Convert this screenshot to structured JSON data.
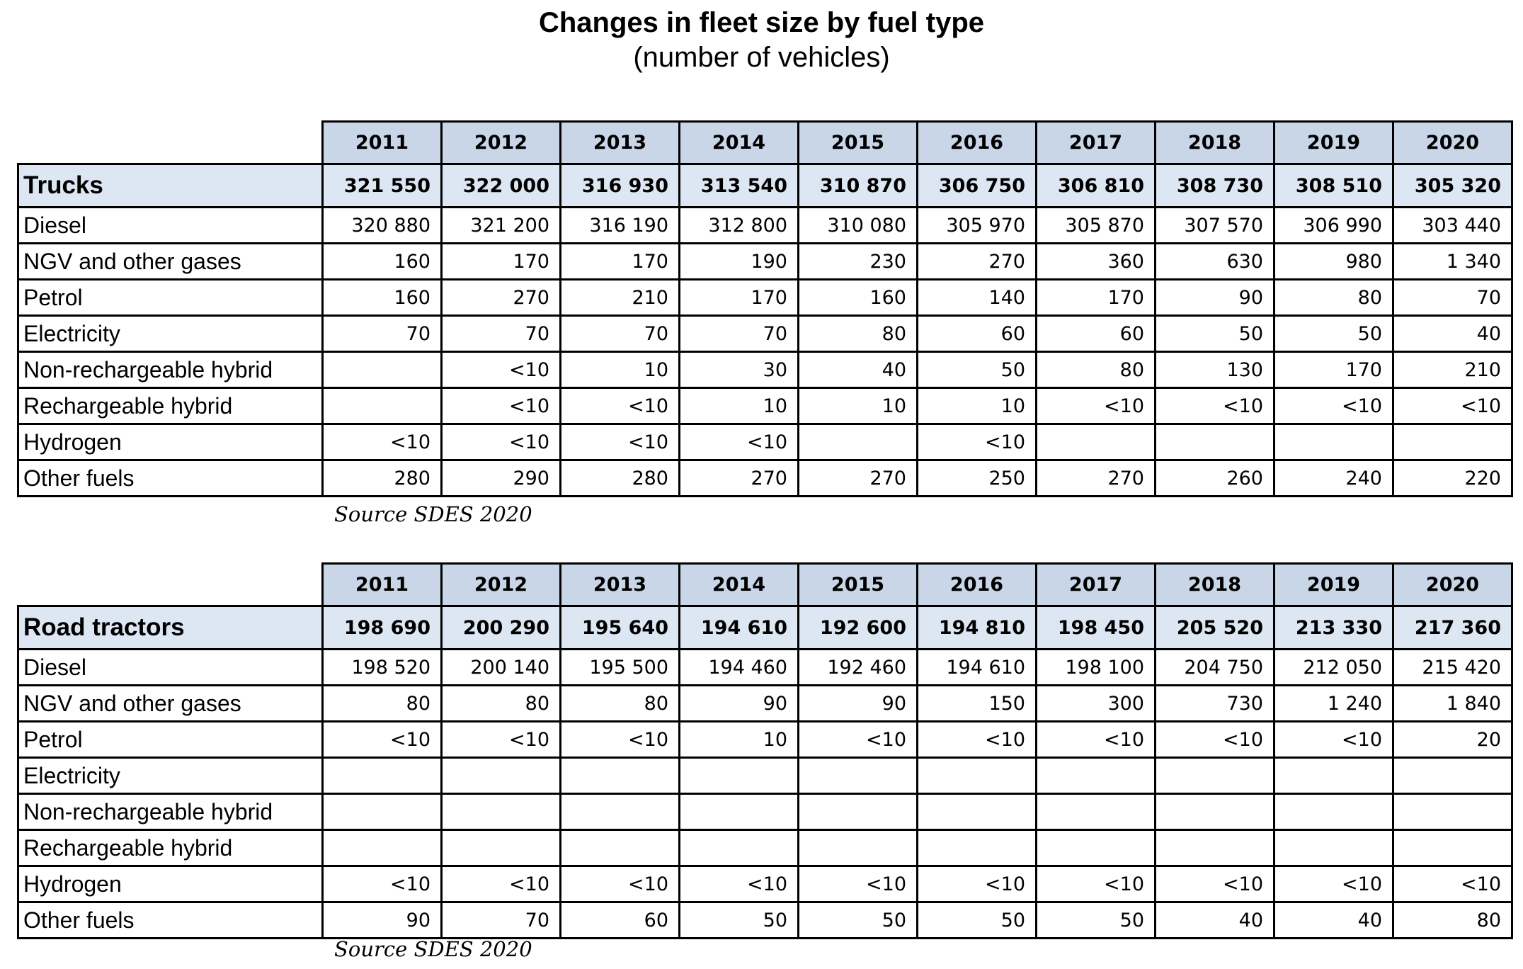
{
  "title": "Changes in fleet size by fuel type",
  "subtitle": "(number of vehicles)",
  "years": [
    "2011",
    "2012",
    "2013",
    "2014",
    "2015",
    "2016",
    "2017",
    "2018",
    "2019",
    "2020"
  ],
  "tables": [
    {
      "total_label": "Trucks",
      "totals": [
        "321 550",
        "322 000",
        "316 930",
        "313 540",
        "310 870",
        "306 750",
        "306 810",
        "308 730",
        "308 510",
        "305 320"
      ],
      "rows": [
        {
          "label": "Diesel",
          "values": [
            "320 880",
            "321 200",
            "316 190",
            "312 800",
            "310 080",
            "305 970",
            "305 870",
            "307 570",
            "306 990",
            "303 440"
          ]
        },
        {
          "label": "NGV and other gases",
          "values": [
            "160",
            "170",
            "170",
            "190",
            "230",
            "270",
            "360",
            "630",
            "980",
            "1 340"
          ]
        },
        {
          "label": "Petrol",
          "values": [
            "160",
            "270",
            "210",
            "170",
            "160",
            "140",
            "170",
            "90",
            "80",
            "70"
          ]
        },
        {
          "label": "Electricity",
          "values": [
            "70",
            "70",
            "70",
            "70",
            "80",
            "60",
            "60",
            "50",
            "50",
            "40"
          ]
        },
        {
          "label": "Non-rechargeable hybrid",
          "values": [
            "",
            "<10",
            "10",
            "30",
            "40",
            "50",
            "80",
            "130",
            "170",
            "210"
          ]
        },
        {
          "label": "Rechargeable hybrid",
          "values": [
            "",
            "<10",
            "<10",
            "10",
            "10",
            "10",
            "<10",
            "<10",
            "<10",
            "<10"
          ]
        },
        {
          "label": "Hydrogen",
          "values": [
            "<10",
            "<10",
            "<10",
            "<10",
            "",
            "<10",
            "",
            "",
            "",
            ""
          ]
        },
        {
          "label": "Other fuels",
          "values": [
            "280",
            "290",
            "280",
            "270",
            "270",
            "250",
            "270",
            "260",
            "240",
            "220"
          ]
        }
      ],
      "source": "Source SDES 2020"
    },
    {
      "total_label": "Road tractors",
      "totals": [
        "198 690",
        "200 290",
        "195 640",
        "194 610",
        "192 600",
        "194 810",
        "198 450",
        "205 520",
        "213 330",
        "217 360"
      ],
      "rows": [
        {
          "label": "Diesel",
          "values": [
            "198 520",
            "200 140",
            "195 500",
            "194 460",
            "192 460",
            "194 610",
            "198 100",
            "204 750",
            "212 050",
            "215 420"
          ]
        },
        {
          "label": "NGV and other gases",
          "values": [
            "80",
            "80",
            "80",
            "90",
            "90",
            "150",
            "300",
            "730",
            "1 240",
            "1 840"
          ]
        },
        {
          "label": "Petrol",
          "values": [
            "<10",
            "<10",
            "<10",
            "10",
            "<10",
            "<10",
            "<10",
            "<10",
            "<10",
            "20"
          ]
        },
        {
          "label": "Electricity",
          "values": [
            "",
            "",
            "",
            "",
            "",
            "",
            "",
            "",
            "",
            ""
          ]
        },
        {
          "label": "Non-rechargeable hybrid",
          "values": [
            "",
            "",
            "",
            "",
            "",
            "",
            "",
            "",
            "",
            ""
          ]
        },
        {
          "label": "Rechargeable hybrid",
          "values": [
            "",
            "",
            "",
            "",
            "",
            "",
            "",
            "",
            "",
            ""
          ]
        },
        {
          "label": "Hydrogen",
          "values": [
            "<10",
            "<10",
            "<10",
            "<10",
            "<10",
            "<10",
            "<10",
            "<10",
            "<10",
            "<10"
          ]
        },
        {
          "label": "Other fuels",
          "values": [
            "90",
            "70",
            "60",
            "50",
            "50",
            "50",
            "50",
            "40",
            "40",
            "80"
          ]
        }
      ],
      "source": "Source SDES 2020"
    }
  ]
}
